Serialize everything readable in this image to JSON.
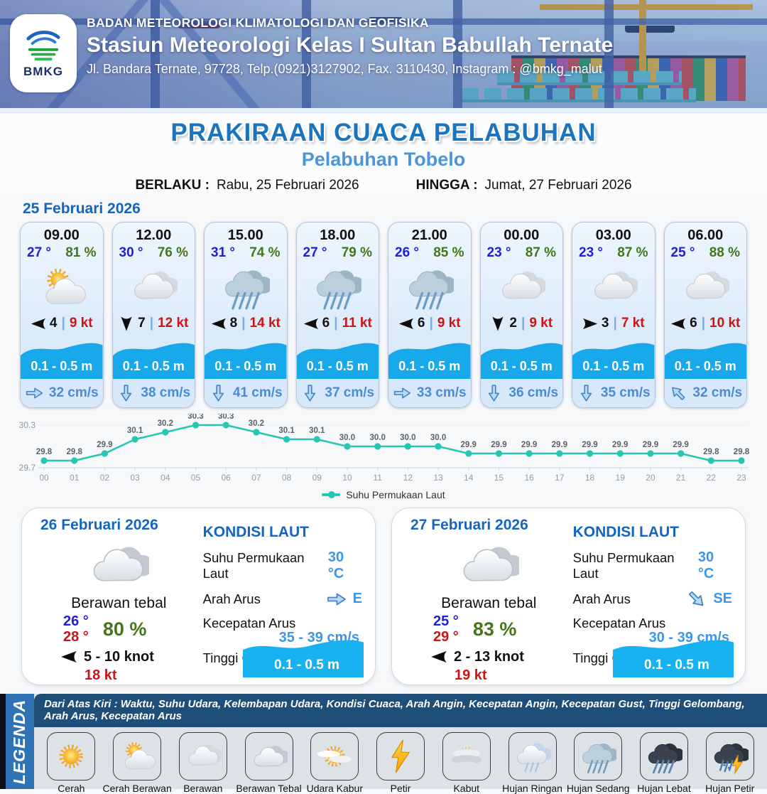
{
  "header": {
    "logo_text": "BMKG",
    "org": "BADAN METEOROLOGI KLIMATOLOGI DAN GEOFISIKA",
    "station": "Stasiun Meteorologi Kelas I Sultan Babullah Ternate",
    "address": "Jl. Bandara Ternate, 97728, Telp.(0921)3127902, Fax. 3110430, Instagram : @bmkg_malut"
  },
  "title": {
    "main": "PRAKIRAAN CUACA PELABUHAN",
    "subtitle": "Pelabuhan Tobelo",
    "berlaku_label": "BERLAKU :",
    "berlaku_value": "Rabu, 25 Februari 2026",
    "hingga_label": "HINGGA :",
    "hingga_value": "Jumat, 27 Februari 2026"
  },
  "colors": {
    "accent_blue": "#1c75bc",
    "wave_blue": "#18a9ea",
    "chart_teal": "#26c6b2"
  },
  "day1": {
    "date": "25 Februari 2026",
    "cards": [
      {
        "time": "09.00",
        "temp": "27 °",
        "humidity": "81 %",
        "icon": "cerah-berawan",
        "wind_dir": "left",
        "wind_speed": "4",
        "gust": "9 kt",
        "wave": "0.1 - 0.5 m",
        "current_dir": "right",
        "current_speed": "32 cm/s"
      },
      {
        "time": "12.00",
        "temp": "30 °",
        "humidity": "76 %",
        "icon": "berawan",
        "wind_dir": "down",
        "wind_speed": "7",
        "gust": "12 kt",
        "wave": "0.1 - 0.5 m",
        "current_dir": "down",
        "current_speed": "38 cm/s"
      },
      {
        "time": "15.00",
        "temp": "31 °",
        "humidity": "74 %",
        "icon": "hujan-sedang",
        "wind_dir": "left",
        "wind_speed": "8",
        "gust": "14 kt",
        "wave": "0.1 - 0.5 m",
        "current_dir": "down",
        "current_speed": "41 cm/s"
      },
      {
        "time": "18.00",
        "temp": "27 °",
        "humidity": "79 %",
        "icon": "hujan-sedang",
        "wind_dir": "left",
        "wind_speed": "6",
        "gust": "11 kt",
        "wave": "0.1 - 0.5 m",
        "current_dir": "down",
        "current_speed": "37 cm/s"
      },
      {
        "time": "21.00",
        "temp": "26 °",
        "humidity": "85 %",
        "icon": "hujan-sedang",
        "wind_dir": "left",
        "wind_speed": "6",
        "gust": "9 kt",
        "wave": "0.1 - 0.5 m",
        "current_dir": "right",
        "current_speed": "33 cm/s"
      },
      {
        "time": "00.00",
        "temp": "23 °",
        "humidity": "87 %",
        "icon": "berawan",
        "wind_dir": "down",
        "wind_speed": "2",
        "gust": "9 kt",
        "wave": "0.1 - 0.5 m",
        "current_dir": "down",
        "current_speed": "36 cm/s"
      },
      {
        "time": "03.00",
        "temp": "23 °",
        "humidity": "87 %",
        "icon": "berawan",
        "wind_dir": "right",
        "wind_speed": "3",
        "gust": "7 kt",
        "wave": "0.1 - 0.5 m",
        "current_dir": "down",
        "current_speed": "35 cm/s"
      },
      {
        "time": "06.00",
        "temp": "25 °",
        "humidity": "88 %",
        "icon": "berawan",
        "wind_dir": "left",
        "wind_speed": "6",
        "gust": "10 kt",
        "wave": "0.1 - 0.5 m",
        "current_dir": "up-left",
        "current_speed": "32 cm/s"
      }
    ]
  },
  "chart_data": {
    "type": "line",
    "legend": "Suhu Permukaan Laut",
    "x": [
      "00",
      "01",
      "02",
      "03",
      "04",
      "05",
      "06",
      "07",
      "08",
      "09",
      "10",
      "11",
      "12",
      "13",
      "14",
      "15",
      "16",
      "17",
      "18",
      "19",
      "20",
      "21",
      "22",
      "23"
    ],
    "values": [
      29.8,
      29.8,
      29.9,
      30.1,
      30.2,
      30.3,
      30.3,
      30.2,
      30.1,
      30.1,
      30.0,
      30.0,
      30.0,
      30.0,
      29.9,
      29.9,
      29.9,
      29.9,
      29.9,
      29.9,
      29.9,
      29.9,
      29.8,
      29.8
    ],
    "ylim": [
      29.7,
      30.3
    ],
    "yticks": [
      "29.7",
      "30.3"
    ],
    "line_color": "#26c6b2",
    "grid": false,
    "legend_position": "bottom"
  },
  "daily": [
    {
      "date": "26 Februari 2026",
      "icon": "berawan-tebal",
      "condition": "Berawan tebal",
      "temp_min": "26 °",
      "temp_max": "28 °",
      "humidity": "80 %",
      "wind_range": "5 - 10 knot",
      "gust": "18 kt",
      "sea": {
        "heading": "KONDISI LAUT",
        "sst_label": "Suhu Permukaan Laut",
        "sst_value": "30 °C",
        "arah_label": "Arah Arus",
        "arah_dir": "right",
        "arah_value": "E",
        "kecepatan_label": "Kecepatan Arus",
        "kecepatan_value": "35 - 39 cm/s",
        "tinggi_label": "Tinggi Gelombang",
        "wave_value": "0.1 - 0.5 m"
      }
    },
    {
      "date": "27 Februari 2026",
      "icon": "berawan-tebal",
      "condition": "Berawan tebal",
      "temp_min": "25 °",
      "temp_max": "29 °",
      "humidity": "83 %",
      "wind_range": "2 - 13 knot",
      "gust": "19 kt",
      "sea": {
        "heading": "KONDISI LAUT",
        "sst_label": "Suhu Permukaan Laut",
        "sst_value": "30 °C",
        "arah_label": "Arah Arus",
        "arah_dir": "down-right",
        "arah_value": "SE",
        "kecepatan_label": "Kecepatan Arus",
        "kecepatan_value": "30 - 39 cm/s",
        "tinggi_label": "Tinggi Gelombang",
        "wave_value": "0.1 - 0.5 m"
      }
    }
  ],
  "legend": {
    "title": "LEGENDA",
    "note": "Dari Atas Kiri : Waktu, Suhu Udara, Kelembapan Udara, Kondisi Cuaca, Arah Angin, Kecepatan Angin, Kecepatan Gust, Tinggi Gelombang, Arah Arus, Kecepatan Arus",
    "items": [
      {
        "label": "Cerah",
        "icon": "cerah"
      },
      {
        "label": "Cerah Berawan",
        "icon": "cerah-berawan"
      },
      {
        "label": "Berawan",
        "icon": "berawan"
      },
      {
        "label": "Berawan Tebal",
        "icon": "berawan-tebal"
      },
      {
        "label": "Udara Kabur",
        "icon": "udara-kabur"
      },
      {
        "label": "Petir",
        "icon": "petir"
      },
      {
        "label": "Kabut",
        "icon": "kabut"
      },
      {
        "label": "Hujan Ringan",
        "icon": "hujan-ringan"
      },
      {
        "label": "Hujan Sedang",
        "icon": "hujan-sedang"
      },
      {
        "label": "Hujan Lebat",
        "icon": "hujan-lebat"
      },
      {
        "label": "Hujan Petir",
        "icon": "hujan-petir"
      }
    ]
  }
}
